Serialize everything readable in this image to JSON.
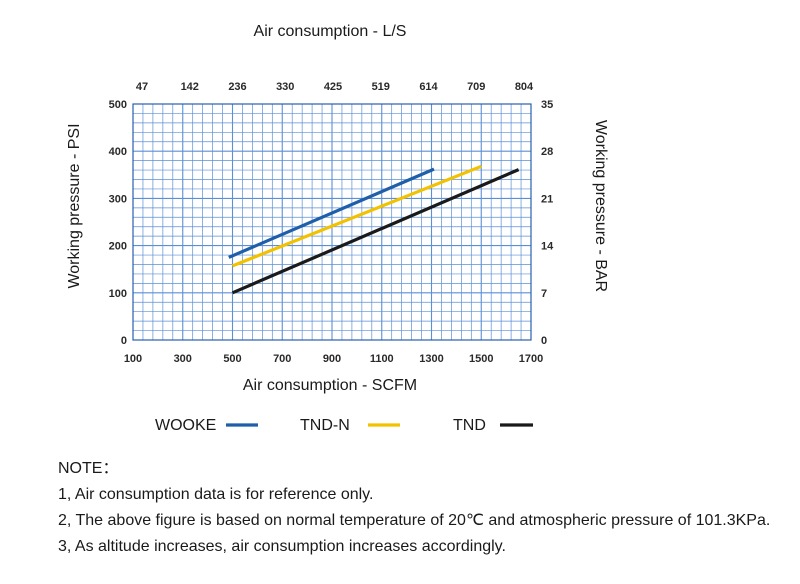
{
  "chart_data": {
    "type": "line",
    "title": "Air consumption - L/S",
    "xlabel": "Air consumption  - SCFM",
    "ylabel": "Working pressure - PSI",
    "y2label": "Working pressure - BAR",
    "x_ticks": [
      "100",
      "300",
      "500",
      "700",
      "900",
      "1100",
      "1300",
      "1500",
      "1700"
    ],
    "x_top_ticks": [
      "47",
      "142",
      "236",
      "330",
      "425",
      "519",
      "614",
      "709",
      "804"
    ],
    "y_ticks": [
      "0",
      "100",
      "200",
      "300",
      "400",
      "500"
    ],
    "y2_ticks": [
      "0",
      "7",
      "14",
      "21",
      "28",
      "35"
    ],
    "xlim": [
      100,
      1700
    ],
    "ylim": [
      0,
      500
    ],
    "grid": true,
    "legend_position": "bottom",
    "series": [
      {
        "name": "WOOKE",
        "color": "#1f5ea8",
        "points": [
          [
            485,
            175
          ],
          [
            1310,
            362
          ]
        ]
      },
      {
        "name": "TND-N",
        "color": "#f2c200",
        "points": [
          [
            500,
            157
          ],
          [
            1500,
            368
          ]
        ]
      },
      {
        "name": "TND",
        "color": "#1a1a1a",
        "points": [
          [
            500,
            100
          ],
          [
            1650,
            361
          ]
        ]
      }
    ]
  },
  "notes": {
    "heading": "NOTE：",
    "lines": [
      "1, Air consumption data is for reference only.",
      "2, The above figure is based on normal temperature of 20℃ and atmospheric pressure of 101.3KPa.",
      "3, As altitude increases, air consumption increases accordingly."
    ]
  }
}
